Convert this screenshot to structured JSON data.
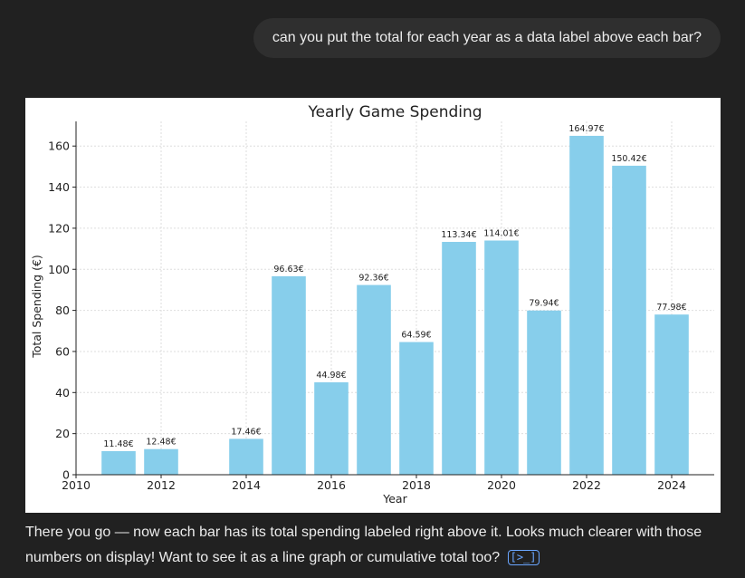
{
  "user_message": "can you put the total for each year as a data label above each bar?",
  "assistant_reply": "There you go — now each bar has its total spending labeled right above it. Looks much clearer with those numbers on display! Want to see it as a line graph or cumulative total too?",
  "icons": {
    "code": "code-icon",
    "code_glyph": "[>_]"
  },
  "colors": {
    "bar": "#87ceeb",
    "background": "#212121"
  },
  "chart_data": {
    "type": "bar",
    "title": "Yearly Game Spending",
    "xlabel": "Year",
    "ylabel": "Total Spending (€)",
    "categories": [
      2011,
      2012,
      2014,
      2015,
      2016,
      2017,
      2018,
      2019,
      2020,
      2021,
      2022,
      2023,
      2024
    ],
    "values": [
      11.48,
      12.48,
      17.46,
      96.63,
      44.98,
      92.36,
      64.59,
      113.34,
      114.01,
      79.94,
      164.97,
      150.42,
      77.98
    ],
    "data_labels": [
      "11.48€",
      "12.48€",
      "17.46€",
      "96.63€",
      "44.98€",
      "92.36€",
      "64.59€",
      "113.34€",
      "114.01€",
      "79.94€",
      "164.97€",
      "150.42€",
      "77.98€"
    ],
    "xlim": [
      2010,
      2025
    ],
    "ylim": [
      0,
      172
    ],
    "xticks": [
      2010,
      2012,
      2014,
      2016,
      2018,
      2020,
      2022,
      2024
    ],
    "yticks": [
      0,
      20,
      40,
      60,
      80,
      100,
      120,
      140,
      160
    ],
    "grid": true,
    "legend": "none"
  }
}
